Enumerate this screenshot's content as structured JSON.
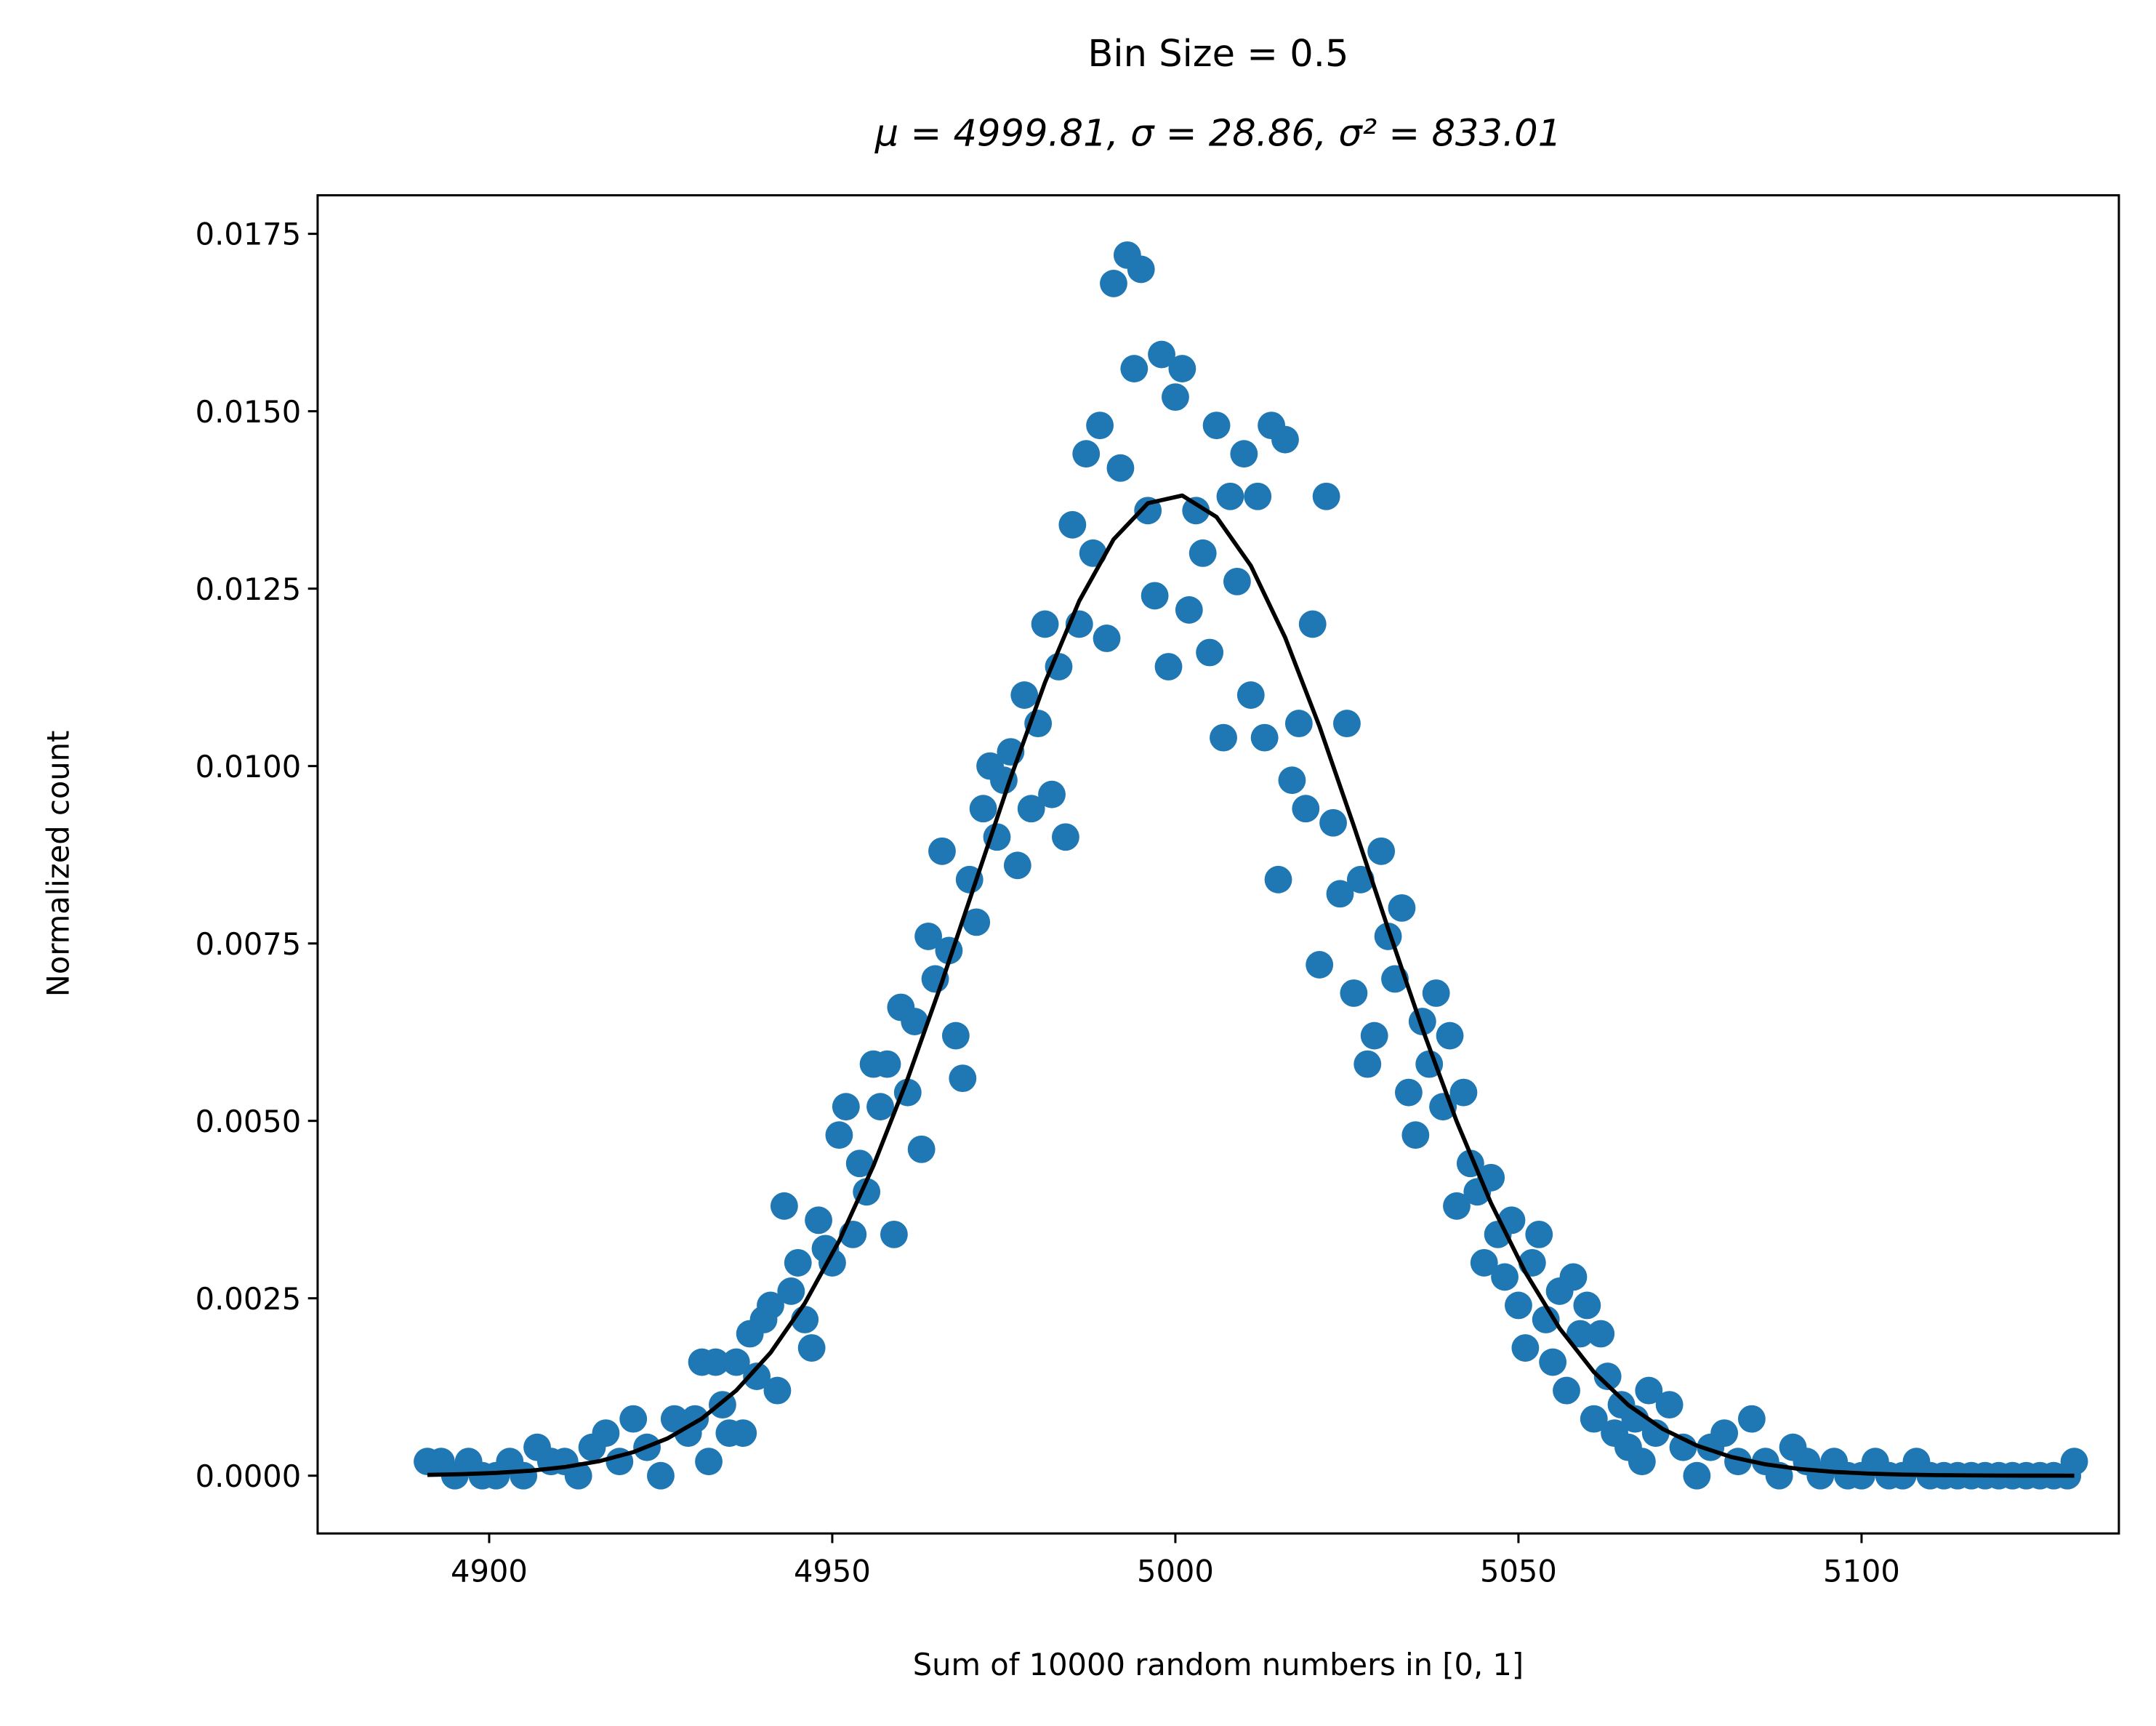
{
  "chart_data": {
    "type": "scatter",
    "title": "Bin Size = 0.5",
    "subtitle": "μ = 4999.81, σ = 28.86, σ² = 833.01",
    "x_label": "Sum of 10000 random numbers in [0, 1]",
    "y_label": "Normalized count",
    "xlim": [
      4875,
      5137.5
    ],
    "ylim": [
      -0.000814,
      0.018043
    ],
    "xticks": [
      4900,
      4950,
      5000,
      5050,
      5100
    ],
    "yticks": [
      {
        "value": 0,
        "label": "0.0000"
      },
      {
        "value": 0.0025,
        "label": "0.0025"
      },
      {
        "value": 0.005,
        "label": "0.0050"
      },
      {
        "value": 0.0075,
        "label": "0.0075"
      },
      {
        "value": 0.01,
        "label": "0.0100"
      },
      {
        "value": 0.0125,
        "label": "0.0125"
      },
      {
        "value": 0.015,
        "label": "0.0150"
      },
      {
        "value": 0.0175,
        "label": "0.0175"
      }
    ],
    "grid": false,
    "series": [
      {
        "type": "scatter",
        "color": "#1f77b4",
        "x": [
          4891,
          4893,
          4895,
          4897,
          4899,
          4901,
          4903,
          4905,
          4907,
          4909,
          4911,
          4913,
          4915,
          4917,
          4919,
          4921,
          4923,
          4925,
          4927,
          4929,
          4930,
          4931,
          4932,
          4933,
          4934,
          4935,
          4936,
          4937,
          4938,
          4939,
          4940,
          4941,
          4942,
          4943,
          4944,
          4945,
          4946,
          4947,
          4948,
          4949,
          4950,
          4951,
          4952,
          4953,
          4954,
          4955,
          4956,
          4957,
          4958,
          4959,
          4960,
          4961,
          4962,
          4963,
          4964,
          4965,
          4966,
          4967,
          4968,
          4969,
          4970,
          4971,
          4972,
          4973,
          4974,
          4975,
          4976,
          4977,
          4978,
          4979,
          4980,
          4981,
          4982,
          4983,
          4984,
          4985,
          4986,
          4987,
          4988,
          4989,
          4990,
          4991,
          4992,
          4993,
          4994,
          4995,
          4996,
          4997,
          4998,
          4999,
          5000,
          5001,
          5002,
          5003,
          5004,
          5005,
          5006,
          5007,
          5008,
          5009,
          5010,
          5011,
          5012,
          5013,
          5014,
          5015,
          5016,
          5017,
          5018,
          5019,
          5020,
          5021,
          5022,
          5023,
          5024,
          5025,
          5026,
          5027,
          5028,
          5029,
          5030,
          5031,
          5032,
          5033,
          5034,
          5035,
          5036,
          5037,
          5038,
          5039,
          5040,
          5041,
          5042,
          5043,
          5044,
          5045,
          5046,
          5047,
          5048,
          5049,
          5050,
          5051,
          5052,
          5053,
          5054,
          5055,
          5056,
          5057,
          5058,
          5059,
          5060,
          5061,
          5062,
          5063,
          5064,
          5065,
          5066,
          5067,
          5068,
          5069,
          5070,
          5072,
          5074,
          5076,
          5078,
          5080,
          5082,
          5084,
          5086,
          5088,
          5090,
          5092,
          5094,
          5096,
          5098,
          5100,
          5102,
          5104,
          5106,
          5108,
          5110,
          5112,
          5114,
          5116,
          5118,
          5120,
          5122,
          5124,
          5126,
          5128,
          5130,
          5131
        ],
        "values": [
          0.0002,
          0.0002,
          0,
          0.0002,
          0,
          0,
          0.0002,
          0,
          0.0004,
          0.0002,
          0.0002,
          0,
          0.0004,
          0.0006,
          0.0002,
          0.0008,
          0.0004,
          0,
          0.0008,
          0.0006,
          0.0008,
          0.0016,
          0.0002,
          0.0016,
          0.001,
          0.0006,
          0.0016,
          0.0006,
          0.002,
          0.0014,
          0.0022,
          0.0024,
          0.0012,
          0.0038,
          0.0026,
          0.003,
          0.0022,
          0.0018,
          0.0036,
          0.0032,
          0.003,
          0.0048,
          0.0052,
          0.0034,
          0.0044,
          0.004,
          0.0058,
          0.0052,
          0.0058,
          0.0034,
          0.0066,
          0.0054,
          0.0064,
          0.0046,
          0.0076,
          0.007,
          0.0088,
          0.0074,
          0.0062,
          0.0056,
          0.0084,
          0.0078,
          0.0094,
          0.01,
          0.009,
          0.0098,
          0.0102,
          0.0086,
          0.011,
          0.0094,
          0.0106,
          0.012,
          0.0096,
          0.0114,
          0.009,
          0.0134,
          0.012,
          0.0144,
          0.013,
          0.0148,
          0.0118,
          0.0168,
          0.0142,
          0.0172,
          0.0156,
          0.017,
          0.0136,
          0.0124,
          0.0158,
          0.0114,
          0.0152,
          0.0156,
          0.0122,
          0.0136,
          0.013,
          0.0116,
          0.0148,
          0.0104,
          0.0138,
          0.0126,
          0.0144,
          0.011,
          0.0138,
          0.0104,
          0.0148,
          0.0084,
          0.0146,
          0.0098,
          0.0106,
          0.0094,
          0.012,
          0.0072,
          0.0138,
          0.0092,
          0.0082,
          0.0106,
          0.0068,
          0.0084,
          0.0058,
          0.0062,
          0.0088,
          0.0076,
          0.007,
          0.008,
          0.0054,
          0.0048,
          0.0064,
          0.0058,
          0.0068,
          0.0052,
          0.0062,
          0.0038,
          0.0054,
          0.0044,
          0.004,
          0.003,
          0.0042,
          0.0034,
          0.0028,
          0.0036,
          0.0024,
          0.0018,
          0.003,
          0.0034,
          0.0022,
          0.0016,
          0.0026,
          0.0012,
          0.0028,
          0.002,
          0.0024,
          0.0008,
          0.002,
          0.0014,
          0.0006,
          0.001,
          0.0004,
          0.0008,
          0.0002,
          0.0012,
          0.0006,
          0.001,
          0.0004,
          0,
          0.0004,
          0.0006,
          0.0002,
          0.0008,
          0.0002,
          0,
          0.0004,
          0.0002,
          0,
          0.0002,
          0,
          0,
          0.0002,
          0,
          0,
          0.0002,
          0,
          0,
          0,
          0,
          0,
          0,
          0,
          0,
          0,
          0,
          0,
          0.0002
        ]
      },
      {
        "type": "line",
        "color": "#000000",
        "x": [
          4891,
          4896,
          4901,
          4906,
          4911,
          4916,
          4921,
          4926,
          4931,
          4936,
          4941,
          4946,
          4951,
          4956,
          4961,
          4966,
          4971,
          4976,
          4981,
          4986,
          4991,
          4996,
          5001,
          5006,
          5011,
          5016,
          5021,
          5026,
          5031,
          5036,
          5041,
          5046,
          5051,
          5056,
          5061,
          5066,
          5071,
          5076,
          5081,
          5086,
          5091,
          5096,
          5101,
          5106,
          5111,
          5116,
          5121,
          5126,
          5131
        ],
        "values": [
          1.13e-05,
          2.14e-05,
          3.94e-05,
          7.02e-05,
          0.0001215,
          0.0002039,
          0.0003319,
          0.0005253,
          0.000806,
          0.0012,
          0.001733,
          0.00243,
          0.003308,
          0.004368,
          0.005597,
          0.00696,
          0.0084,
          0.009837,
          0.011178,
          0.012328,
          0.013195,
          0.013704,
          0.013812,
          0.01351,
          0.012823,
          0.011811,
          0.010559,
          0.009158,
          0.00771,
          0.006298,
          0.004992,
          0.00384,
          0.002867,
          0.002076,
          0.00146,
          0.000996,
          0.00066,
          0.000424,
          0.000264,
          0.00016,
          9.39e-05,
          5.35e-05,
          2.96e-05,
          1.59e-05,
          8.3e-06,
          4.2e-06,
          2e-06,
          1e-06,
          5e-07
        ]
      }
    ]
  }
}
